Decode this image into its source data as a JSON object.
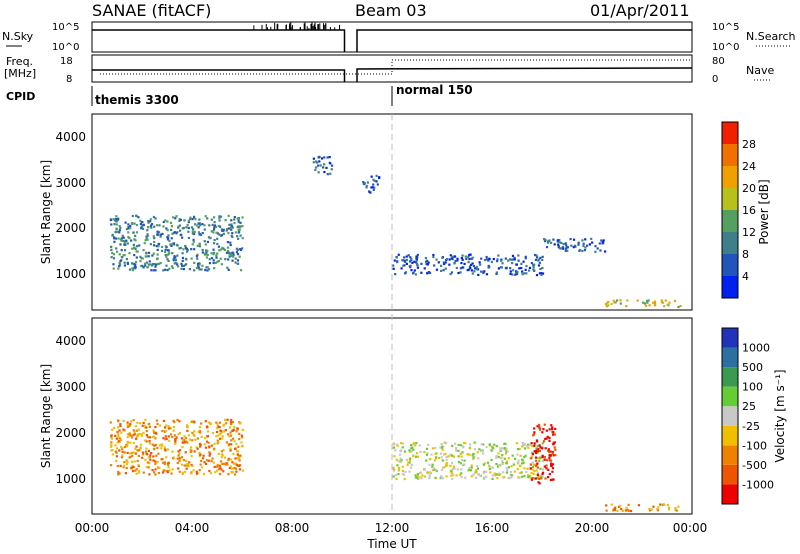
{
  "header": {
    "station": "SANAE (fitACF)",
    "beam": "Beam 03",
    "date": "01/Apr/2011"
  },
  "top_panels": {
    "nsky": {
      "label": "N.Sky",
      "ticks": [
        "10^5",
        "10^0"
      ],
      "right_ticks": [
        "10^5",
        "10^0"
      ],
      "right_label": "N.Search"
    },
    "freq": {
      "label_line1": "Freq.",
      "label_line2": "[MHz]",
      "ticks": [
        "18",
        "8"
      ],
      "right_ticks": [
        "80",
        "0"
      ],
      "right_label": "Nave"
    },
    "cpid": {
      "label": "CPID",
      "segments": [
        {
          "label": "themis 3300",
          "start": 0,
          "end": 12
        },
        {
          "label": "normal 150",
          "start": 12,
          "end": 24
        }
      ]
    }
  },
  "axes": {
    "xlabel": "Time UT",
    "xticks": [
      "00:00",
      "04:00",
      "08:00",
      "12:00",
      "16:00",
      "20:00",
      "00:00"
    ],
    "ylabel": "Slant Range [km]",
    "yticks": [
      "1000",
      "2000",
      "3000",
      "4000"
    ]
  },
  "power_colorbar": {
    "label": "Power [dB]",
    "ticks": [
      "4",
      "8",
      "12",
      "16",
      "20",
      "24",
      "28"
    ],
    "colors": [
      "#0022ee",
      "#2255bb",
      "#3e7f8a",
      "#55a060",
      "#b8c01c",
      "#f0a000",
      "#f07000",
      "#ee2200"
    ]
  },
  "velocity_colorbar": {
    "label": "Velocity [m s⁻¹]",
    "ticks": [
      "1000",
      "500",
      "100",
      "25",
      "-25",
      "-100",
      "-500",
      "-1000"
    ],
    "colors": [
      "#2233bb",
      "#2c70a0",
      "#3a9a50",
      "#66cc33",
      "#c8c8c8",
      "#f0c000",
      "#f08000",
      "#ee5500",
      "#ee0000"
    ]
  },
  "chart_data": {
    "type": "heatmap",
    "x_units": "hours UT",
    "y_units": "km",
    "xlim": [
      0,
      24
    ],
    "ylim": [
      200,
      4600
    ],
    "transition_hour": 12,
    "power_regions": [
      {
        "t0": 0.7,
        "t1": 6.0,
        "r0": 1100,
        "r1": 2300,
        "level": 2
      },
      {
        "t0": 8.8,
        "t1": 9.6,
        "r0": 3200,
        "r1": 3600,
        "level": 1
      },
      {
        "t0": 10.8,
        "t1": 11.5,
        "r0": 2800,
        "r1": 3200,
        "level": 1
      },
      {
        "t0": 12.0,
        "t1": 18.0,
        "r0": 1000,
        "r1": 1450,
        "level": 1
      },
      {
        "t0": 18.0,
        "t1": 20.5,
        "r0": 1500,
        "r1": 1800,
        "level": 1
      },
      {
        "t0": 20.5,
        "t1": 23.5,
        "r0": 300,
        "r1": 450,
        "level": 4
      }
    ],
    "velocity_regions": [
      {
        "t0": 0.7,
        "t1": 6.0,
        "r0": 1100,
        "r1": 2300,
        "level": 6
      },
      {
        "t0": 12.0,
        "t1": 18.0,
        "r0": 1000,
        "r1": 1800,
        "level": 4
      },
      {
        "t0": 17.5,
        "t1": 18.5,
        "r0": 900,
        "r1": 2200,
        "level": 8
      },
      {
        "t0": 20.5,
        "t1": 23.5,
        "r0": 300,
        "r1": 450,
        "level": 6
      }
    ]
  }
}
